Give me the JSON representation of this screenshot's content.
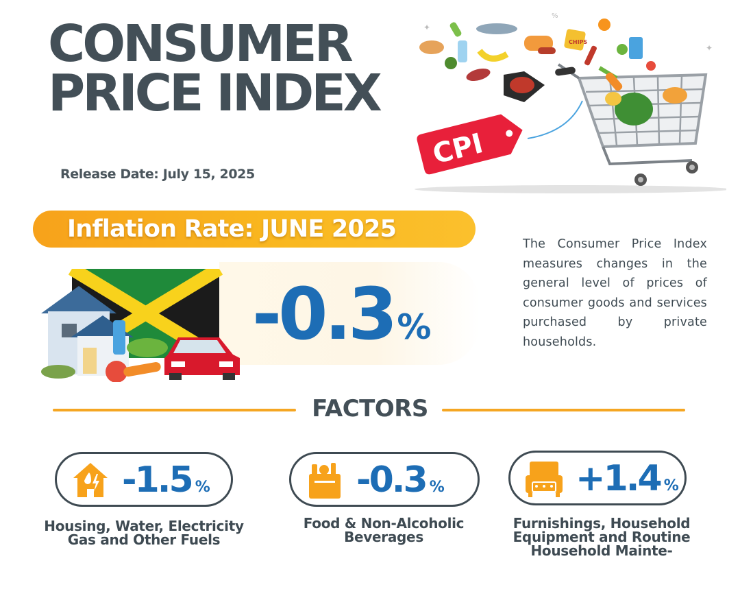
{
  "header": {
    "title_line1": "CONSUMER",
    "title_line2": "PRICE INDEX",
    "release_date": "Release Date: July 15, 2025"
  },
  "hero": {
    "tag_label": "CPI"
  },
  "inflation": {
    "label": "Inflation Rate: JUNE 2025",
    "value": "-0.3",
    "unit": "%"
  },
  "description": "The Consumer Price Index measures changes in the general level of prices of consumer goods and services purchased by private households.",
  "factors": {
    "heading": "FACTORS",
    "items": [
      {
        "value": "-1.5",
        "unit": "%",
        "label_line1": "Housing, Water, Electricity",
        "label_line2": "Gas and Other Fuels",
        "icon": "house-utilities-icon"
      },
      {
        "value": "-0.3",
        "unit": "%",
        "label_line1": "Food & Non-Alcoholic",
        "label_line2": "Beverages",
        "icon": "grocery-bag-icon"
      },
      {
        "value": "+1.4",
        "unit": "%",
        "label_line1": "Furnishings, Household",
        "label_line2": "Equipment and Routine",
        "label_line3": "Household Mainte-",
        "icon": "armchair-icon"
      }
    ]
  },
  "colors": {
    "title": "#434f57",
    "accent_orange": "#f7a21b",
    "value_blue": "#1d6db5",
    "cpi_red": "#e8203a"
  }
}
